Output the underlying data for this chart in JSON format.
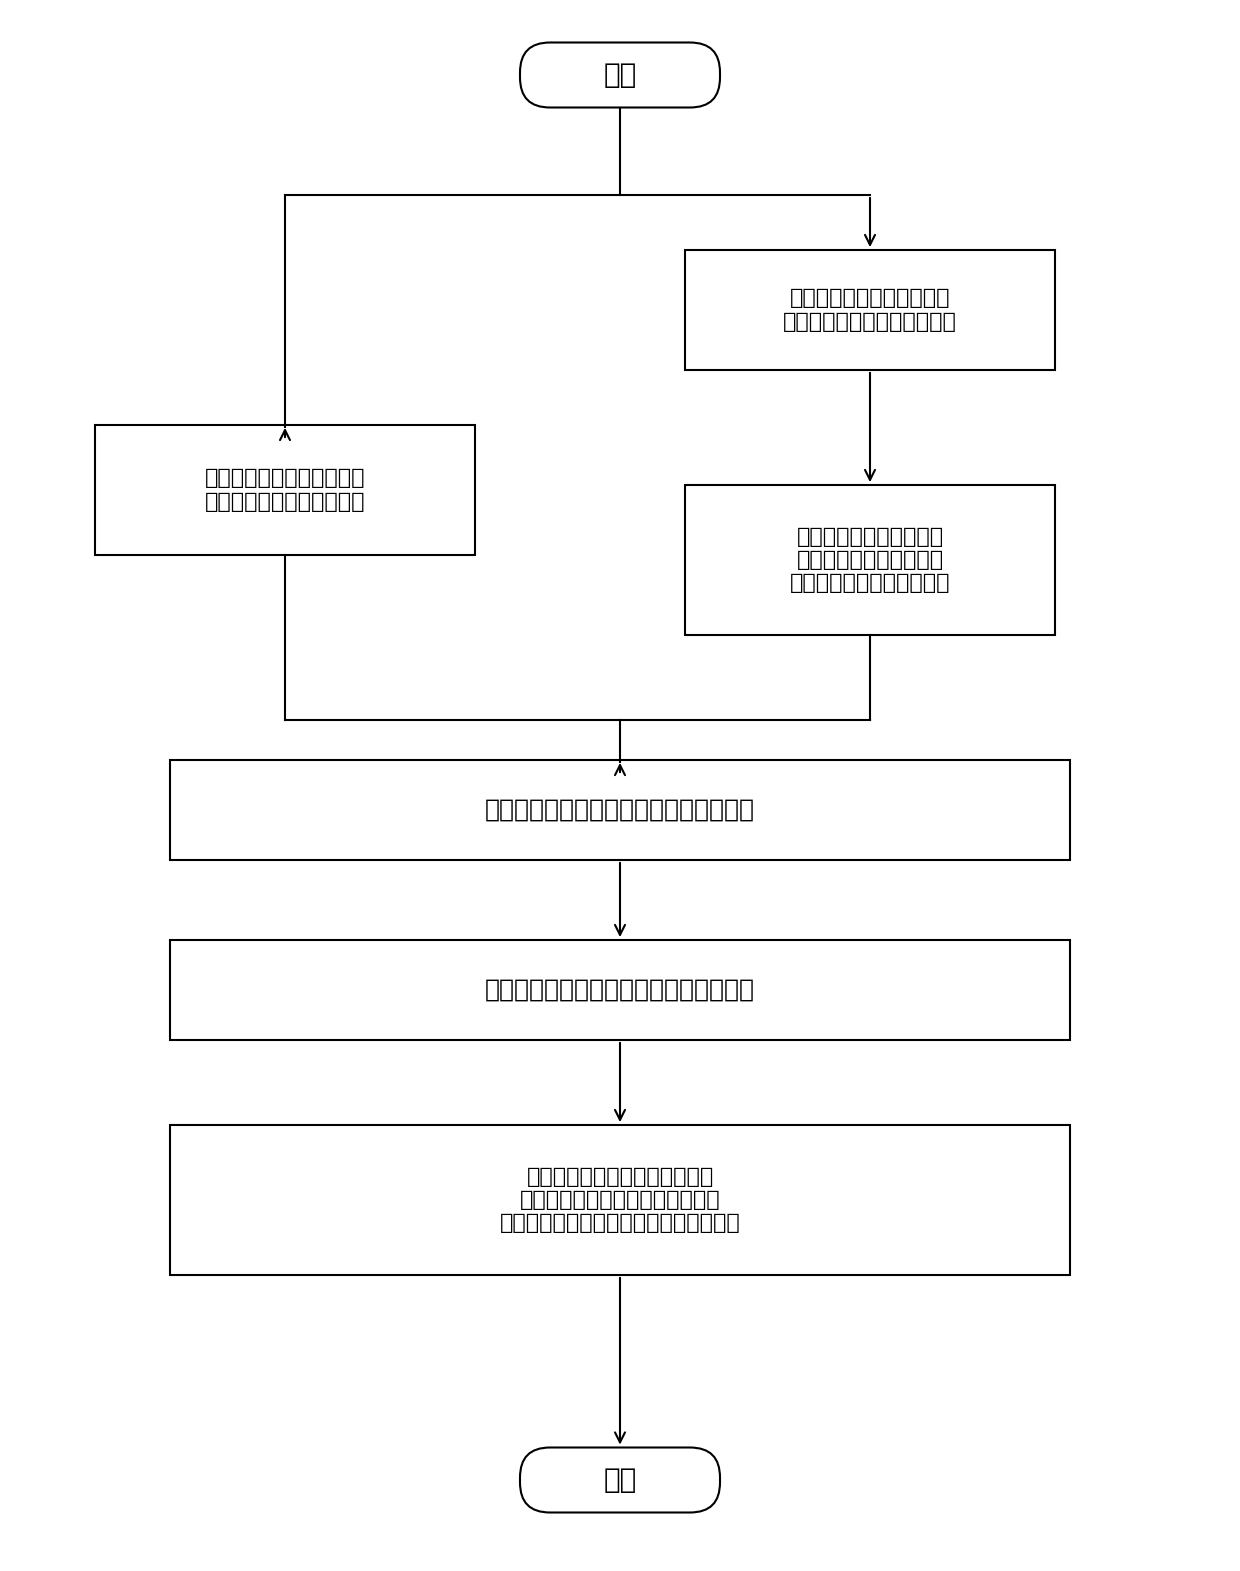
{
  "bg_color": "#ffffff",
  "line_color": "#000000",
  "text_color": "#000000",
  "font_size": 16,
  "start_text": "开始",
  "end_text": "结束",
  "rb1_text": "提取宽频带下石墨烯材料的\n电极化率张量和磁极化率张量",
  "lb1_text": "建立基于广义薄层传输条件\n的电磁波时域有限差分方程",
  "rb2_text": "采用复共轭极点留数对的\n方法，拟合宽频带下的电\n极化率张量和磁极化率张量",
  "mb1_text": "极化电流密度和极化磁流密度的更新方程",
  "mb2_text": "石墨烯上电场强度和磁场强度的更新方程",
  "mb3_text": "进行差分迭代，求解计算域内的\n电场强度与磁场强度，并使用离散\n傅里叶变换计算得到反射系数和透射系数"
}
